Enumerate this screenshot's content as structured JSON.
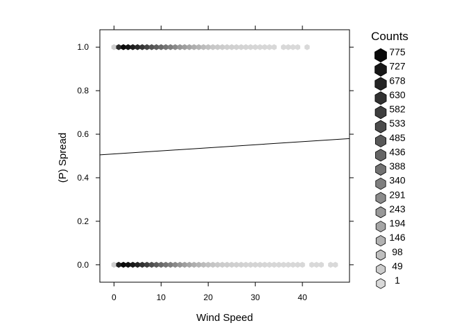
{
  "chart_data": {
    "type": "scatter",
    "subtype": "hexbin",
    "title": "",
    "xlabel": "Wind Speed",
    "ylabel": "(P) Spread",
    "xlim": [
      -3,
      50
    ],
    "ylim": [
      -0.08,
      1.08
    ],
    "x_ticks": [
      0,
      10,
      20,
      30,
      40
    ],
    "y_ticks": [
      "0.0",
      "0.2",
      "0.4",
      "0.6",
      "0.8",
      "1.0"
    ],
    "grid": false,
    "fit_line": {
      "x": [
        -3,
        50
      ],
      "y": [
        0.505,
        0.58
      ]
    },
    "color_scale": {
      "low": "#d9d9d9",
      "high": "#0a0a0a"
    },
    "legend": {
      "title": "Counts",
      "position": "right",
      "levels": [
        "775",
        "727",
        "678",
        "630",
        "582",
        "533",
        "485",
        "436",
        "388",
        "340",
        "291",
        "243",
        "194",
        "146",
        "98",
        "49",
        "1"
      ]
    },
    "series": [
      {
        "y": 1.0,
        "x": [
          0,
          1,
          2,
          3,
          4,
          5,
          6,
          7,
          8,
          9,
          10,
          11,
          12,
          13,
          14,
          15,
          16,
          17,
          18,
          19,
          20,
          21,
          22,
          23,
          24,
          25,
          26,
          27,
          28,
          29,
          30,
          31,
          32,
          33,
          34,
          36,
          37,
          38,
          39,
          41
        ],
        "counts": [
          40,
          650,
          775,
          740,
          700,
          660,
          610,
          560,
          500,
          460,
          420,
          380,
          340,
          300,
          250,
          220,
          190,
          160,
          140,
          110,
          90,
          70,
          60,
          50,
          40,
          35,
          30,
          25,
          20,
          15,
          12,
          10,
          8,
          6,
          5,
          3,
          3,
          2,
          1,
          1
        ]
      },
      {
        "y": 0.0,
        "x": [
          0,
          1,
          2,
          3,
          4,
          5,
          6,
          7,
          8,
          9,
          10,
          11,
          12,
          13,
          14,
          15,
          16,
          17,
          18,
          19,
          20,
          21,
          22,
          23,
          24,
          25,
          26,
          27,
          28,
          29,
          30,
          31,
          32,
          33,
          34,
          35,
          36,
          37,
          38,
          39,
          40,
          42,
          43,
          44,
          46,
          47
        ],
        "counts": [
          40,
          700,
          775,
          750,
          720,
          680,
          630,
          580,
          520,
          470,
          420,
          380,
          340,
          300,
          260,
          220,
          190,
          160,
          140,
          110,
          90,
          75,
          60,
          50,
          45,
          40,
          35,
          30,
          25,
          20,
          18,
          15,
          12,
          10,
          8,
          7,
          6,
          5,
          4,
          3,
          3,
          2,
          2,
          1,
          1,
          1
        ]
      }
    ]
  }
}
